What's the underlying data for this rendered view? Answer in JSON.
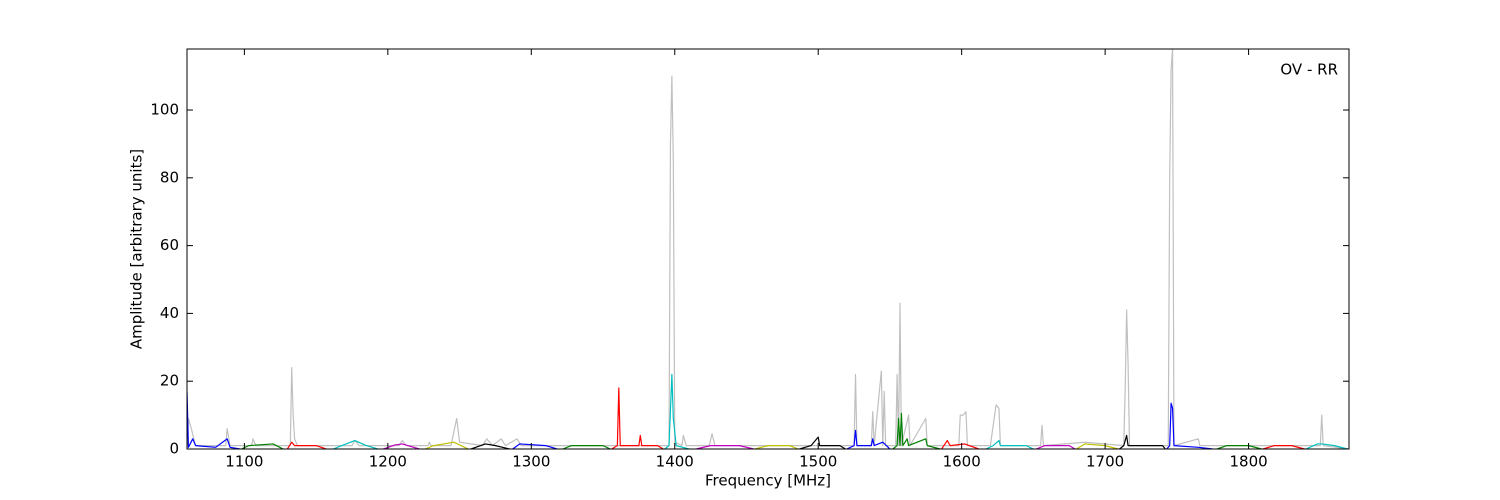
{
  "chart_data": {
    "type": "line",
    "annotation": "OV - RR",
    "x_label": "Frequency [MHz]",
    "y_label": "Amplitude [arbitrary units]",
    "xlim": [
      1060,
      1870
    ],
    "ylim": [
      0,
      118
    ],
    "xticks": [
      1100,
      1200,
      1300,
      1400,
      1500,
      1600,
      1700,
      1800
    ],
    "yticks": [
      0,
      20,
      40,
      60,
      80,
      100
    ],
    "series": [
      {
        "color": "#c0c0c0",
        "x": [
          1060,
          1061,
          1063,
          1066,
          1087,
          1088,
          1090,
          1105,
          1106,
          1108,
          1132,
          1133,
          1134,
          1135,
          1137,
          1175,
          1177,
          1180,
          1208,
          1210,
          1213,
          1228,
          1229,
          1230,
          1244,
          1246,
          1248,
          1250,
          1266,
          1269,
          1273,
          1279,
          1282,
          1290,
          1293,
          1396,
          1397,
          1398,
          1399,
          1400,
          1405,
          1406,
          1408,
          1424,
          1426,
          1428,
          1525,
          1526,
          1527,
          1537,
          1538,
          1539,
          1544,
          1545,
          1546,
          1547,
          1554,
          1555,
          1556,
          1557,
          1558,
          1563,
          1564,
          1575,
          1576,
          1598,
          1599,
          1601,
          1603,
          1604,
          1620,
          1622,
          1624,
          1626,
          1627,
          1655,
          1656,
          1657,
          1686,
          1713,
          1714,
          1715,
          1716,
          1717,
          1744,
          1745,
          1746,
          1747,
          1748,
          1765,
          1766,
          1850,
          1851,
          1852,
          1870
        ],
        "values": [
          0,
          9,
          6,
          1,
          1,
          6,
          1,
          1,
          3,
          1,
          1,
          24,
          10,
          3,
          1,
          1,
          2.5,
          1,
          1,
          2.5,
          1,
          1,
          2,
          1,
          1,
          5,
          9,
          2,
          1,
          3,
          1,
          3,
          1,
          3,
          1,
          1,
          90,
          110,
          85,
          2,
          1,
          4,
          1,
          1,
          4.5,
          1,
          1,
          22,
          1,
          1,
          11,
          1,
          23,
          1,
          17,
          1,
          1,
          22,
          1,
          43,
          1,
          10,
          1,
          9,
          1,
          1,
          10,
          10,
          11,
          1,
          1,
          7,
          13,
          12,
          1,
          1,
          7,
          1,
          2,
          1,
          18,
          41,
          25,
          1,
          1,
          80,
          112,
          118,
          1,
          3,
          1,
          1,
          10,
          1,
          0
        ]
      },
      {
        "color": "#0000ff",
        "x": [
          1060,
          1061,
          1064,
          1066,
          1080,
          1088,
          1090,
          1097
        ],
        "values": [
          17,
          0.5,
          3,
          1,
          0.5,
          3,
          0.5,
          0
        ]
      },
      {
        "color": "#008000",
        "x": [
          1098,
          1103,
          1120,
          1127
        ],
        "values": [
          0,
          1,
          1.5,
          0
        ]
      },
      {
        "color": "#ff0000",
        "x": [
          1130,
          1133,
          1135,
          1150,
          1157
        ],
        "values": [
          0,
          2,
          1,
          1,
          0
        ]
      },
      {
        "color": "#00bfbf",
        "x": [
          1162,
          1168,
          1177,
          1185,
          1193
        ],
        "values": [
          0,
          1,
          2.5,
          1,
          0
        ]
      },
      {
        "color": "#bf00bf",
        "x": [
          1197,
          1205,
          1210,
          1222
        ],
        "values": [
          0,
          1.2,
          1.5,
          0
        ]
      },
      {
        "color": "#bfbf00",
        "x": [
          1226,
          1232,
          1246,
          1256
        ],
        "values": [
          0,
          1,
          2,
          0
        ]
      },
      {
        "color": "#000000",
        "x": [
          1258,
          1268,
          1275,
          1285
        ],
        "values": [
          0,
          1.5,
          1,
          0
        ]
      },
      {
        "color": "#0000ff",
        "x": [
          1287,
          1292,
          1310,
          1318
        ],
        "values": [
          0,
          1.5,
          1,
          0
        ]
      },
      {
        "color": "#008000",
        "x": [
          1322,
          1328,
          1350,
          1355
        ],
        "values": [
          0,
          1,
          1,
          0
        ]
      },
      {
        "color": "#ff0000",
        "x": [
          1356,
          1360,
          1361,
          1362,
          1375,
          1376,
          1377,
          1388,
          1392
        ],
        "values": [
          0,
          1,
          18,
          1,
          1,
          4,
          1,
          1,
          0
        ]
      },
      {
        "color": "#00bfbf",
        "x": [
          1393,
          1396,
          1398,
          1399,
          1401,
          1410
        ],
        "values": [
          0,
          1,
          22,
          9,
          1,
          0
        ]
      },
      {
        "color": "#bf00bf",
        "x": [
          1415,
          1425,
          1445,
          1455
        ],
        "values": [
          0,
          1,
          1,
          0
        ]
      },
      {
        "color": "#bfbf00",
        "x": [
          1456,
          1465,
          1480,
          1486
        ],
        "values": [
          0,
          1,
          1,
          0
        ]
      },
      {
        "color": "#000000",
        "x": [
          1487,
          1495,
          1500,
          1501,
          1515,
          1519
        ],
        "values": [
          0,
          1,
          3.5,
          1,
          1,
          0
        ]
      },
      {
        "color": "#0000ff",
        "x": [
          1520,
          1525,
          1526,
          1527,
          1537,
          1538,
          1539,
          1545,
          1550
        ],
        "values": [
          0,
          1,
          5.5,
          1,
          1,
          3,
          1,
          2,
          0
        ]
      },
      {
        "color": "#008000",
        "x": [
          1552,
          1555,
          1556,
          1557,
          1558,
          1559,
          1562,
          1563,
          1575,
          1576,
          1585
        ],
        "values": [
          0,
          1,
          9,
          1,
          10.5,
          1,
          3,
          1,
          3,
          1,
          0
        ]
      },
      {
        "color": "#ff0000",
        "x": [
          1586,
          1590,
          1592,
          1602,
          1612
        ],
        "values": [
          0,
          2.5,
          1,
          1.5,
          0
        ]
      },
      {
        "color": "#00bfbf",
        "x": [
          1617,
          1622,
          1626,
          1627,
          1645,
          1650
        ],
        "values": [
          0,
          1,
          2.5,
          1,
          1,
          0
        ]
      },
      {
        "color": "#bf00bf",
        "x": [
          1652,
          1658,
          1675,
          1679
        ],
        "values": [
          0,
          1,
          1,
          0
        ]
      },
      {
        "color": "#bfbf00",
        "x": [
          1680,
          1686,
          1700,
          1709
        ],
        "values": [
          0,
          1.5,
          1,
          0
        ]
      },
      {
        "color": "#000000",
        "x": [
          1710,
          1713,
          1715,
          1716,
          1740,
          1742
        ],
        "values": [
          0,
          1,
          4,
          1,
          1,
          0
        ]
      },
      {
        "color": "#0000ff",
        "x": [
          1743,
          1745,
          1746,
          1747,
          1748,
          1765,
          1775
        ],
        "values": [
          0,
          1,
          13.5,
          12,
          1,
          0.5,
          0
        ]
      },
      {
        "color": "#008000",
        "x": [
          1778,
          1785,
          1800,
          1809
        ],
        "values": [
          0,
          1,
          1,
          0
        ]
      },
      {
        "color": "#ff0000",
        "x": [
          1810,
          1818,
          1830,
          1839
        ],
        "values": [
          0,
          1,
          1,
          0
        ]
      },
      {
        "color": "#00bfbf",
        "x": [
          1840,
          1848,
          1851,
          1860,
          1869
        ],
        "values": [
          0,
          1.5,
          1.5,
          1,
          0
        ]
      }
    ]
  }
}
